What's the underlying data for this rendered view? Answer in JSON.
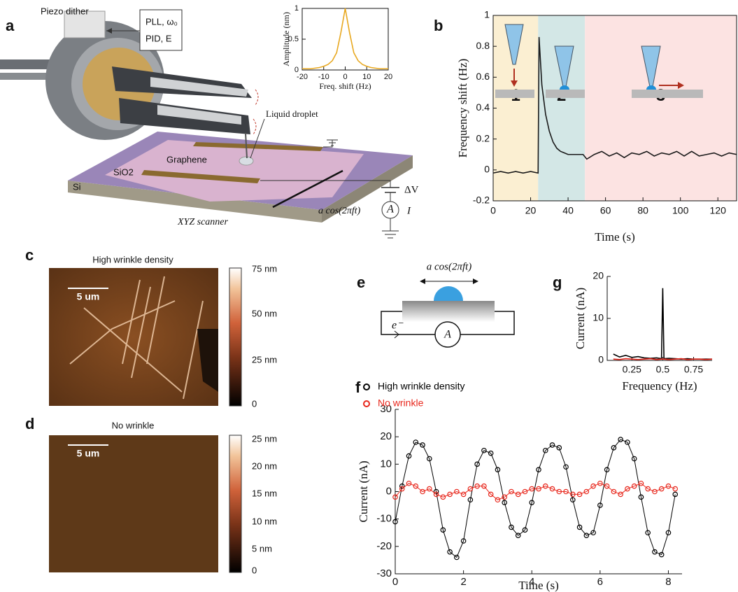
{
  "panel_labels": {
    "a": "a",
    "b": "b",
    "c": "c",
    "d": "d",
    "e": "e",
    "f": "f",
    "g": "g"
  },
  "diagram_a": {
    "piezo": "Piezo dither",
    "pll": "PLL, ω₀",
    "pid": "PID, E",
    "droplet": "Liquid droplet",
    "graphene": "Graphene",
    "sio2": "SiO2",
    "si": "Si",
    "voltage": "ΔV",
    "drive": "a cos(2πft)",
    "ammeter": "A",
    "current": "I",
    "scanner": "XYZ scanner"
  },
  "image_c": {
    "title": "High wrinkle density",
    "scale": "5 um",
    "colorbar": [
      "75 nm",
      "50 nm",
      "25 nm",
      "0"
    ]
  },
  "image_d": {
    "title": "No wrinkle",
    "scale": "5 um",
    "colorbar": [
      "25 nm",
      "20 nm",
      "15 nm",
      "10 nm",
      "5 nm",
      "0"
    ]
  },
  "diagram_e": {
    "drive": "a cos(2πft)",
    "electron": "e⁻",
    "ammeter": "A"
  },
  "chart_data": [
    {
      "type": "line",
      "xlabel": "Freq. shift (Hz)",
      "ylabel": "Amplitude (nm)",
      "xlim": [
        -20,
        20
      ],
      "ylim": [
        0,
        1
      ],
      "xticks": [
        -20,
        -10,
        0,
        10,
        20
      ],
      "yticks": [
        0,
        0.5,
        1
      ],
      "x": [
        -20,
        -18,
        -16,
        -14,
        -12,
        -10,
        -8,
        -6,
        -4,
        -2,
        0,
        2,
        4,
        6,
        8,
        10,
        12,
        14,
        16,
        18,
        20
      ],
      "series": [
        {
          "color": "#e8a820",
          "values": [
            0.02,
            0.02,
            0.02,
            0.03,
            0.04,
            0.06,
            0.09,
            0.15,
            0.28,
            0.61,
            1,
            0.61,
            0.28,
            0.15,
            0.09,
            0.06,
            0.04,
            0.03,
            0.02,
            0.02,
            0.02
          ]
        }
      ]
    },
    {
      "type": "line",
      "xlabel": "Time (s)",
      "ylabel": "Frequency shift (Hz)",
      "xlim": [
        0,
        130
      ],
      "ylim": [
        -0.2,
        1
      ],
      "xticks": [
        0,
        20,
        40,
        60,
        80,
        100,
        120
      ],
      "yticks": [
        -0.2,
        0,
        0.2,
        0.4,
        0.6,
        0.8,
        1
      ],
      "regions": [
        {
          "label": "1",
          "start": 0,
          "end": 24,
          "color": "#fbefd2"
        },
        {
          "label": "2",
          "start": 24,
          "end": 49,
          "color": "#d3e7e6"
        },
        {
          "label": "3",
          "start": 49,
          "end": 130,
          "color": "#fce3e2"
        }
      ],
      "x": [
        0,
        4,
        8,
        12,
        16,
        20,
        24,
        24.5,
        26,
        28,
        30,
        32,
        34,
        36,
        38,
        40,
        44,
        48,
        50,
        54,
        58,
        62,
        66,
        70,
        74,
        78,
        82,
        86,
        90,
        94,
        98,
        102,
        106,
        110,
        114,
        118,
        122,
        126,
        130
      ],
      "series": [
        {
          "color": "#1a1a1a",
          "values": [
            -0.02,
            -0.01,
            -0.02,
            -0.01,
            -0.02,
            -0.01,
            -0.02,
            0.86,
            0.55,
            0.36,
            0.25,
            0.18,
            0.14,
            0.12,
            0.11,
            0.1,
            0.1,
            0.1,
            0.07,
            0.1,
            0.12,
            0.09,
            0.11,
            0.08,
            0.11,
            0.1,
            0.12,
            0.09,
            0.11,
            0.1,
            0.12,
            0.09,
            0.12,
            0.09,
            0.1,
            0.11,
            0.09,
            0.11,
            0.1
          ]
        }
      ]
    },
    {
      "type": "line",
      "xlabel": "Frequency (Hz)",
      "ylabel": "Current (nA)",
      "xlim": [
        0.05,
        0.9
      ],
      "ylim": [
        0,
        20
      ],
      "xticks": [
        0.25,
        0.5,
        0.75
      ],
      "yticks": [
        0,
        10,
        20
      ],
      "x": [
        0.1,
        0.15,
        0.2,
        0.25,
        0.3,
        0.35,
        0.4,
        0.45,
        0.49,
        0.5,
        0.51,
        0.55,
        0.6,
        0.65,
        0.7,
        0.75,
        0.8,
        0.85,
        0.9
      ],
      "series": [
        {
          "color": "#000000",
          "values": [
            1.5,
            0.8,
            1.2,
            0.7,
            0.9,
            0.6,
            0.5,
            0.6,
            0.4,
            17.2,
            0.4,
            0.5,
            0.4,
            0.3,
            0.4,
            0.3,
            0.3,
            0.3,
            0.3
          ]
        },
        {
          "color": "#e8271c",
          "values": [
            0.3,
            0.2,
            0.4,
            0.3,
            0.2,
            0.3,
            0.4,
            0.2,
            0.3,
            0.3,
            0.3,
            0.2,
            0.3,
            0.4,
            0.2,
            0.3,
            0.3,
            0.2,
            0.3
          ]
        }
      ]
    },
    {
      "type": "line",
      "marker": "circle",
      "xlabel": "Time (s)",
      "ylabel": "Current (nA)",
      "xlim": [
        0,
        8.4
      ],
      "ylim": [
        -30,
        30
      ],
      "xticks": [
        0,
        2,
        4,
        6,
        8
      ],
      "yticks": [
        -30,
        -20,
        -10,
        0,
        10,
        20,
        30
      ],
      "x": [
        0,
        0.2,
        0.4,
        0.6,
        0.8,
        1,
        1.2,
        1.4,
        1.6,
        1.8,
        2,
        2.2,
        2.4,
        2.6,
        2.8,
        3,
        3.2,
        3.4,
        3.6,
        3.8,
        4,
        4.2,
        4.4,
        4.6,
        4.8,
        5,
        5.2,
        5.4,
        5.6,
        5.8,
        6,
        6.2,
        6.4,
        6.6,
        6.8,
        7,
        7.2,
        7.4,
        7.6,
        7.8,
        8,
        8.2
      ],
      "series": [
        {
          "name": "High wrinkle density",
          "color": "#000000",
          "values": [
            -11,
            2,
            13,
            18,
            17,
            12,
            0,
            -14,
            -22,
            -24,
            -18,
            -3,
            10,
            15,
            14,
            8,
            -4,
            -13,
            -16,
            -14,
            -4,
            8,
            15,
            17,
            16,
            9,
            -3,
            -13,
            -16,
            -15,
            -5,
            8,
            16,
            19,
            18,
            12,
            -2,
            -15,
            -22,
            -23,
            -15,
            -1
          ]
        },
        {
          "name": "No wrinkle",
          "color": "#e8271c",
          "values": [
            -2,
            1,
            3,
            2,
            0,
            1,
            -1,
            -2,
            -1,
            0,
            -1,
            1,
            2,
            2,
            -1,
            -3,
            -2,
            0,
            -1,
            0,
            1,
            1,
            2,
            1,
            0,
            0,
            -1,
            -1,
            0,
            2,
            3,
            2,
            0,
            -1,
            1,
            2,
            3,
            1,
            0,
            1,
            2,
            1
          ]
        }
      ]
    }
  ]
}
